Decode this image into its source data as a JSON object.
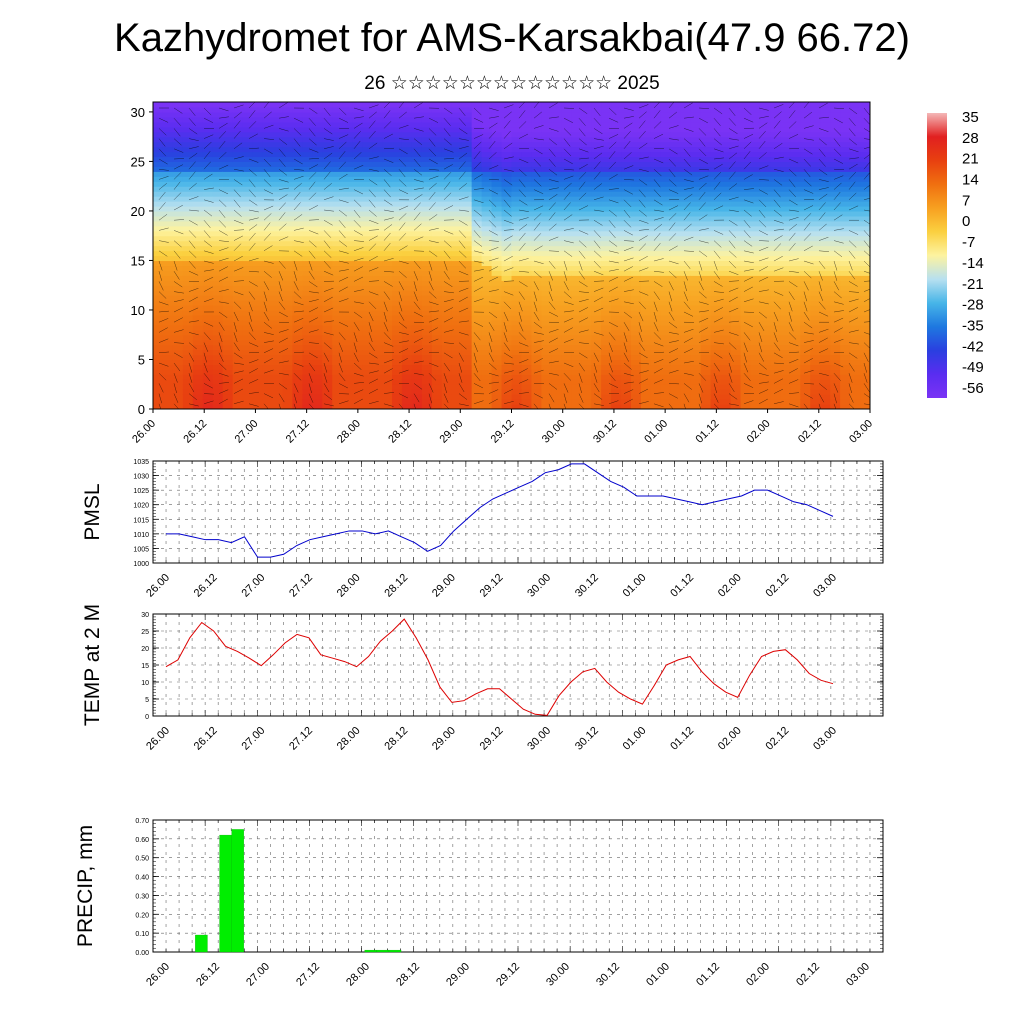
{
  "title": "Kazhydromet for AMS-Karsakbai(47.9 66.72)",
  "subtitle": "26 ☆☆☆☆☆☆☆☆☆☆☆☆☆ 2025",
  "time_ticks": [
    "26.00",
    "26.12",
    "27.00",
    "27.12",
    "28.00",
    "28.12",
    "29.00",
    "29.12",
    "30.00",
    "30.12",
    "01.00",
    "01.12",
    "02.00",
    "02.12",
    "03.00"
  ],
  "chart_data": [
    {
      "type": "heatmap",
      "name": "cross-section",
      "ylim": [
        0,
        31
      ],
      "y_ticks": [
        "0",
        "5",
        "10",
        "15",
        "20",
        "25",
        "30"
      ],
      "colorbar_labels": [
        "35",
        "28",
        "21",
        "14",
        "7",
        "0",
        "-7",
        "-14",
        "-21",
        "-28",
        "-35",
        "-42",
        "-49",
        "-56"
      ],
      "colorbar_range": [
        -60,
        38
      ],
      "colorbar_colors": [
        "#f4b7b7",
        "#e12020",
        "#e84010",
        "#f07010",
        "#f7a020",
        "#fbd040",
        "#fdf3a0",
        "#b7e0f0",
        "#47b5e8",
        "#1e78e0",
        "#2a3fe0",
        "#5a2df0",
        "#7a33f5"
      ]
    },
    {
      "type": "line",
      "ylabel": "PMSL",
      "ylim": [
        1000,
        1035
      ],
      "y_ticks": [
        "1000",
        "1005",
        "1010",
        "1015",
        "1020",
        "1025",
        "1030",
        "1035"
      ],
      "line_color": "#0000cc",
      "values": [
        1010,
        1010,
        1009,
        1008,
        1008,
        1007,
        1009,
        1002,
        1002,
        1003,
        1006,
        1008,
        1009,
        1010,
        1011,
        1011,
        1010,
        1011,
        1009,
        1007,
        1004,
        1006,
        1011,
        1015,
        1019,
        1022,
        1024,
        1026,
        1028,
        1031,
        1032,
        1034,
        1034,
        1031,
        1028,
        1026,
        1023,
        1023,
        1023,
        1022,
        1021,
        1020,
        1021,
        1022,
        1023,
        1025,
        1025,
        1023,
        1021,
        1020,
        1018,
        1016
      ]
    },
    {
      "type": "line",
      "ylabel": "TEMP at 2 M",
      "ylim": [
        0,
        30
      ],
      "y_ticks": [
        "0",
        "5",
        "10",
        "15",
        "20",
        "25",
        "30"
      ],
      "line_color": "#dd0000",
      "values": [
        14.5,
        16.5,
        23,
        27.5,
        25,
        20.5,
        19,
        17,
        14.8,
        18,
        21.5,
        24,
        23,
        18,
        17,
        16,
        14.5,
        17.5,
        22,
        25,
        28.5,
        23,
        16.5,
        8.5,
        4,
        4.5,
        6.5,
        8,
        8,
        5,
        2,
        0.5,
        0.2,
        6,
        10,
        13,
        14,
        10,
        7,
        5,
        3.5,
        9,
        15,
        16.5,
        17.5,
        13,
        9.5,
        7,
        5.5,
        12,
        17.5,
        19,
        19.5,
        16.5,
        12.5,
        10.5,
        9.5
      ]
    },
    {
      "type": "bar",
      "ylabel": "PRECIP, mm",
      "ylim": [
        0,
        0.7
      ],
      "y_ticks": [
        "0.00",
        "0.10",
        "0.20",
        "0.30",
        "0.40",
        "0.50",
        "0.60",
        "0.70"
      ],
      "bar_color": "#00ee00",
      "bars": [
        {
          "x": 3.5,
          "value": 0.09
        },
        {
          "x": 5.5,
          "value": 0.62
        },
        {
          "x": 6.5,
          "value": 0.65
        },
        {
          "x": 17.5,
          "value": 0.01
        },
        {
          "x": 18.5,
          "value": 0.01
        },
        {
          "x": 19.5,
          "value": 0.01
        }
      ]
    }
  ]
}
